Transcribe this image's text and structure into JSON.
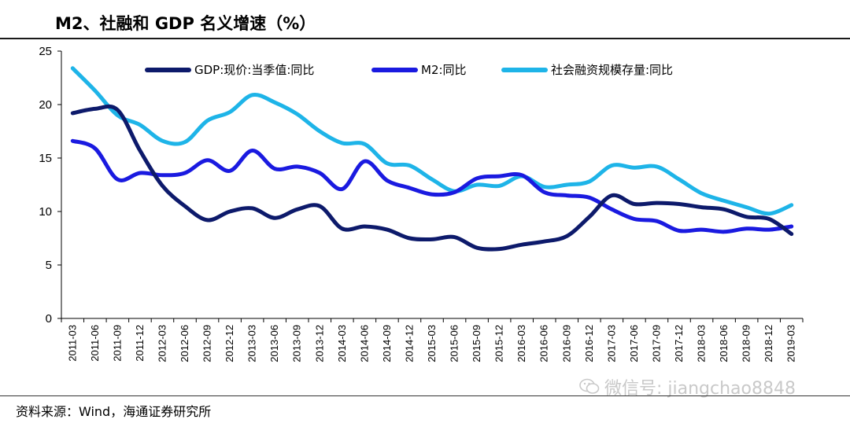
{
  "header": {
    "title": "M2、社融和 GDP 名义增速（%）"
  },
  "footer": {
    "source": "资料来源：Wind，海通证券研究所",
    "watermark": "微信号: jiangchao8848"
  },
  "colors": {
    "gdp": "#0d1a6b",
    "m2": "#1a1ae0",
    "tsf": "#1eb4e8",
    "axis": "#000000"
  },
  "chart_data": {
    "type": "line",
    "title": "M2、社融和 GDP 名义增速（%）",
    "xlabel": "",
    "ylabel": "",
    "ylim": [
      0,
      25
    ],
    "yticks": [
      "0",
      "5",
      "10",
      "15",
      "20",
      "25"
    ],
    "categories": [
      "2011-03",
      "2011-06",
      "2011-09",
      "2011-12",
      "2012-03",
      "2012-06",
      "2012-09",
      "2012-12",
      "2013-03",
      "2013-06",
      "2013-09",
      "2013-12",
      "2014-03",
      "2014-06",
      "2014-09",
      "2014-12",
      "2015-03",
      "2015-06",
      "2015-09",
      "2015-12",
      "2016-03",
      "2016-06",
      "2016-09",
      "2016-12",
      "2017-03",
      "2017-06",
      "2017-09",
      "2017-12",
      "2018-03",
      "2018-06",
      "2018-09",
      "2018-12",
      "2019-03"
    ],
    "series": [
      {
        "key": "gdp",
        "name": "GDP:现价:当季值:同比",
        "values": [
          19.2,
          19.6,
          19.5,
          15.7,
          12.4,
          10.5,
          9.2,
          10.0,
          10.3,
          9.4,
          10.2,
          10.5,
          8.4,
          8.6,
          8.3,
          7.5,
          7.4,
          7.6,
          6.6,
          6.5,
          6.9,
          7.2,
          7.7,
          9.5,
          11.5,
          10.7,
          10.8,
          10.7,
          10.4,
          10.2,
          9.5,
          9.3,
          7.9
        ]
      },
      {
        "key": "m2",
        "name": "M2:同比",
        "values": [
          16.6,
          15.9,
          13.0,
          13.6,
          13.4,
          13.6,
          14.8,
          13.8,
          15.7,
          14.0,
          14.2,
          13.6,
          12.1,
          14.7,
          12.9,
          12.2,
          11.6,
          11.8,
          13.1,
          13.3,
          13.4,
          11.8,
          11.5,
          11.3,
          10.2,
          9.3,
          9.1,
          8.2,
          8.3,
          8.1,
          8.4,
          8.3,
          8.6
        ]
      },
      {
        "key": "tsf",
        "name": "社会融资规模存量:同比",
        "values": [
          23.4,
          21.3,
          19.0,
          18.1,
          16.6,
          16.5,
          18.5,
          19.3,
          20.9,
          20.2,
          19.1,
          17.5,
          16.4,
          16.3,
          14.5,
          14.3,
          13.0,
          11.9,
          12.5,
          12.4,
          13.3,
          12.3,
          12.5,
          12.8,
          14.3,
          14.1,
          14.2,
          13.0,
          11.7,
          11.0,
          10.4,
          9.8,
          10.6
        ]
      }
    ],
    "legend": {
      "placement": "top"
    }
  }
}
